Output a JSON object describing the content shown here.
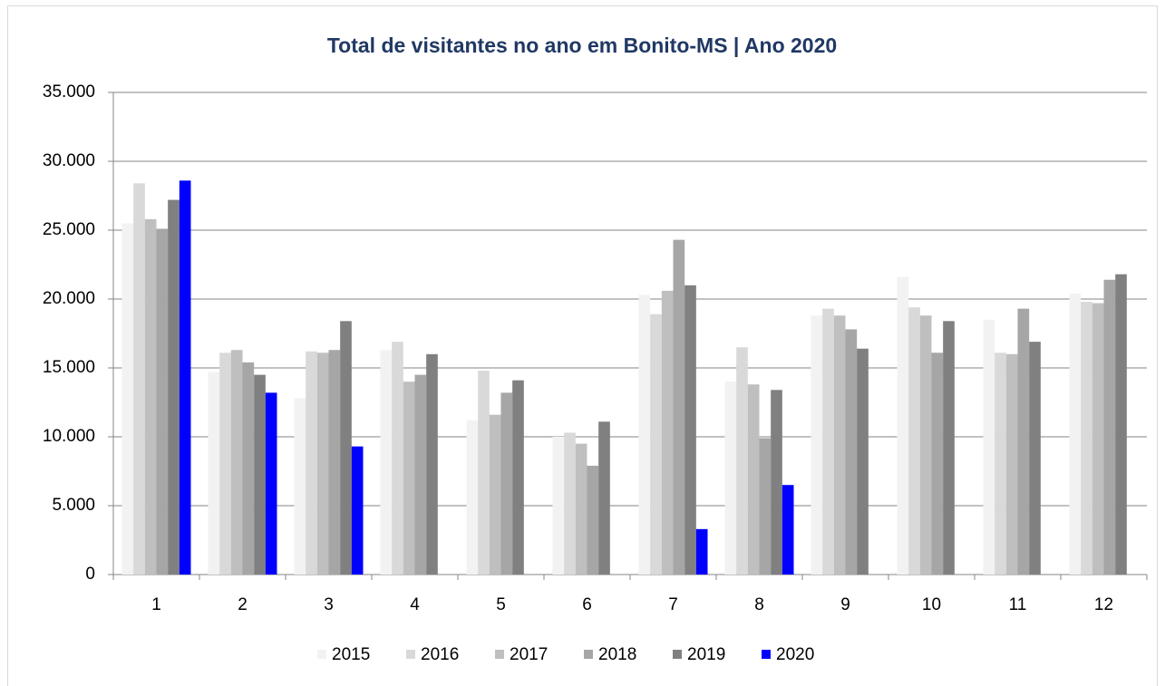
{
  "chart_data": {
    "type": "bar",
    "title": "Total de  visitantes no ano em Bonito-MS | Ano 2020",
    "categories": [
      "1",
      "2",
      "3",
      "4",
      "5",
      "6",
      "7",
      "8",
      "9",
      "10",
      "11",
      "12"
    ],
    "series": [
      {
        "name": "2015",
        "color": "#f2f2f2",
        "values": [
          25500,
          14700,
          12800,
          16300,
          11200,
          10000,
          20300,
          14000,
          18800,
          21600,
          18500,
          20400
        ]
      },
      {
        "name": "2016",
        "color": "#d9d9d9",
        "values": [
          28400,
          16100,
          16200,
          16900,
          14800,
          10300,
          18900,
          16500,
          19300,
          19400,
          16100,
          19800
        ]
      },
      {
        "name": "2017",
        "color": "#bfbfbf",
        "values": [
          25800,
          16300,
          16100,
          14000,
          11600,
          9500,
          20600,
          13800,
          18800,
          18800,
          16000,
          19700
        ]
      },
      {
        "name": "2018",
        "color": "#a6a6a6",
        "values": [
          25100,
          15400,
          16300,
          14500,
          13200,
          7900,
          24300,
          9900,
          17800,
          16100,
          19300,
          21400
        ]
      },
      {
        "name": "2019",
        "color": "#808080",
        "values": [
          27200,
          14500,
          18400,
          16000,
          14100,
          11100,
          21000,
          13400,
          16400,
          18400,
          16900,
          21800
        ]
      },
      {
        "name": "2020",
        "color": "#0000ff",
        "values": [
          28600,
          13200,
          9300,
          null,
          null,
          null,
          3300,
          6500,
          null,
          null,
          null,
          null
        ]
      }
    ],
    "ylim": [
      0,
      35000
    ],
    "yticks": [
      0,
      {
        "value": 5000,
        "label": "5.000"
      },
      {
        "value": 10000,
        "label": "10.000"
      },
      {
        "value": 15000,
        "label": "15.000"
      },
      {
        "value": 20000,
        "label": "20.000"
      },
      {
        "value": 25000,
        "label": "25.000"
      },
      {
        "value": 30000,
        "label": "30.000"
      },
      {
        "value": 35000,
        "label": "35.000"
      }
    ],
    "grid": true,
    "legend": "bottom"
  }
}
